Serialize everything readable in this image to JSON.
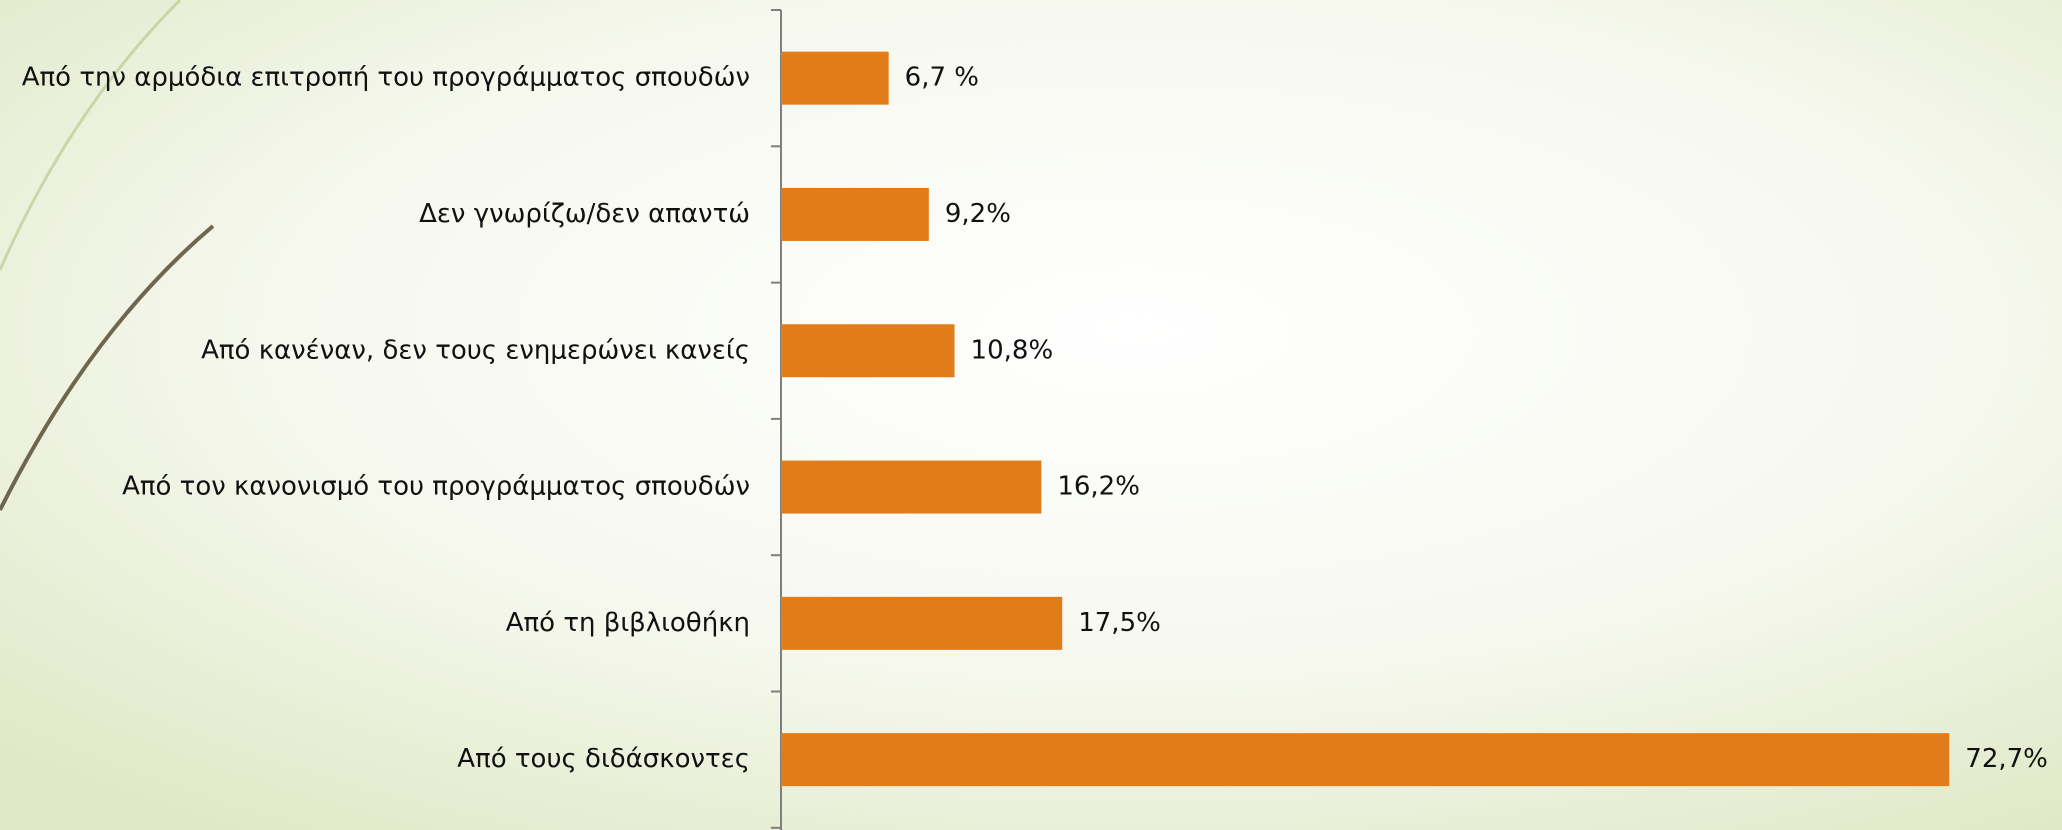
{
  "chart_data": {
    "type": "bar",
    "orientation": "horizontal",
    "categories": [
      "Από την αρμόδια επιτροπή του προγράμματος σπουδών",
      "Δεν γνωρίζω/δεν απαντώ",
      "Από κανέναν, δεν τους ενημερώνει κανείς",
      "Από τον κανονισμό του προγράμματος σπουδών",
      "Από τη βιβλιοθήκη",
      "Από τους διδάσκοντες"
    ],
    "values": [
      6.7,
      9.2,
      10.8,
      16.2,
      17.5,
      72.7
    ],
    "value_labels": [
      "6,7 %",
      "9,2%",
      "10,8%",
      "16,2%",
      "17,5%",
      "72,7%"
    ],
    "color": "#e07d1a"
  }
}
